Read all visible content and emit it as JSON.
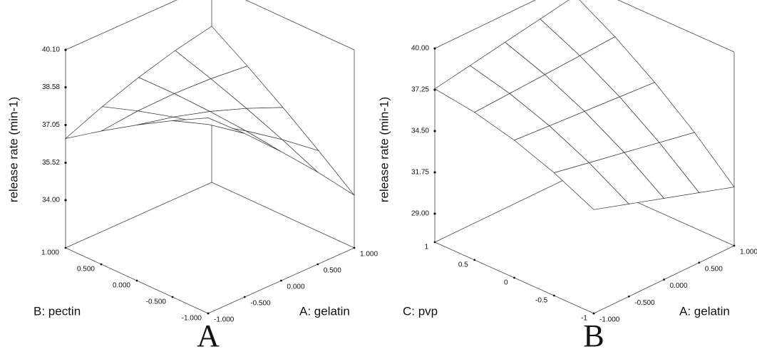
{
  "chart_data": [
    {
      "type": "surface",
      "panel_label": "A",
      "z_label": "release rate (min-1)",
      "x_label": "A: gelatin",
      "y_label": "B: pectin",
      "x": [
        -1,
        -0.5,
        0,
        0.5,
        1
      ],
      "y": [
        -1,
        -0.5,
        0,
        0.5,
        1
      ],
      "z": [
        [
          40.0,
          38.7,
          37.3,
          35.8,
          34.2
        ],
        [
          39.22,
          38.4,
          37.48,
          36.46,
          35.34
        ],
        [
          38.38,
          38.04,
          37.6,
          37.06,
          36.43
        ],
        [
          37.47,
          37.62,
          37.66,
          37.6,
          37.45
        ],
        [
          36.5,
          37.13,
          37.65,
          38.08,
          38.4
        ]
      ],
      "xlim": [
        -1,
        1
      ],
      "ylim": [
        -1,
        1
      ],
      "zlim": [
        34,
        40.1
      ],
      "xticks": [
        {
          "value": -1,
          "label": "-1.000"
        },
        {
          "value": -0.5,
          "label": "-0.500"
        },
        {
          "value": 0,
          "label": "0.000"
        },
        {
          "value": 0.5,
          "label": "0.500"
        },
        {
          "value": 1,
          "label": "1.000"
        }
      ],
      "yticks": [
        {
          "value": -1,
          "label": "-1.000"
        },
        {
          "value": -0.5,
          "label": "-0.500"
        },
        {
          "value": 0,
          "label": "0.000"
        },
        {
          "value": 0.5,
          "label": "0.500"
        },
        {
          "value": 1,
          "label": "1.000"
        }
      ],
      "zticks": [
        {
          "value": 34,
          "label": "34.00"
        },
        {
          "value": 35.52,
          "label": "35.52"
        },
        {
          "value": 37.05,
          "label": "37.05"
        },
        {
          "value": 38.58,
          "label": "38.58"
        },
        {
          "value": 40.1,
          "label": "40.10"
        }
      ]
    },
    {
      "type": "surface",
      "panel_label": "B",
      "z_label": "release rate (min-1)",
      "x_label": "A: gelatin",
      "y_label": "C: pvp",
      "x": [
        -1,
        -0.5,
        0,
        0.5,
        1
      ],
      "y": [
        -1,
        -0.5,
        0,
        0.5,
        1
      ],
      "z": [
        [
          34.01,
          33.26,
          32.51,
          31.76,
          31.01
        ],
        [
          35.28,
          34.82,
          34.37,
          33.91,
          33.46
        ],
        [
          36.26,
          36.09,
          35.93,
          35.77,
          35.61
        ],
        [
          36.93,
          37.06,
          37.19,
          37.32,
          37.46
        ],
        [
          37.31,
          37.73,
          38.16,
          38.58,
          39.01
        ]
      ],
      "xlim": [
        -1,
        1
      ],
      "ylim": [
        -1,
        1
      ],
      "zlim": [
        29,
        40
      ],
      "xticks": [
        {
          "value": -1,
          "label": "-1.000"
        },
        {
          "value": -0.5,
          "label": "-0.500"
        },
        {
          "value": 0,
          "label": "0.000"
        },
        {
          "value": 0.5,
          "label": "0.500"
        },
        {
          "value": 1,
          "label": "1.000"
        }
      ],
      "yticks": [
        -1,
        -0.5,
        0,
        0.5,
        1
      ],
      "zticks": [
        {
          "value": 29,
          "label": "29.00"
        },
        {
          "value": 31.75,
          "label": "31.75"
        },
        {
          "value": 34.5,
          "label": "34.50"
        },
        {
          "value": 37.25,
          "label": "37.25"
        },
        {
          "value": 40,
          "label": "40.00"
        }
      ]
    }
  ]
}
